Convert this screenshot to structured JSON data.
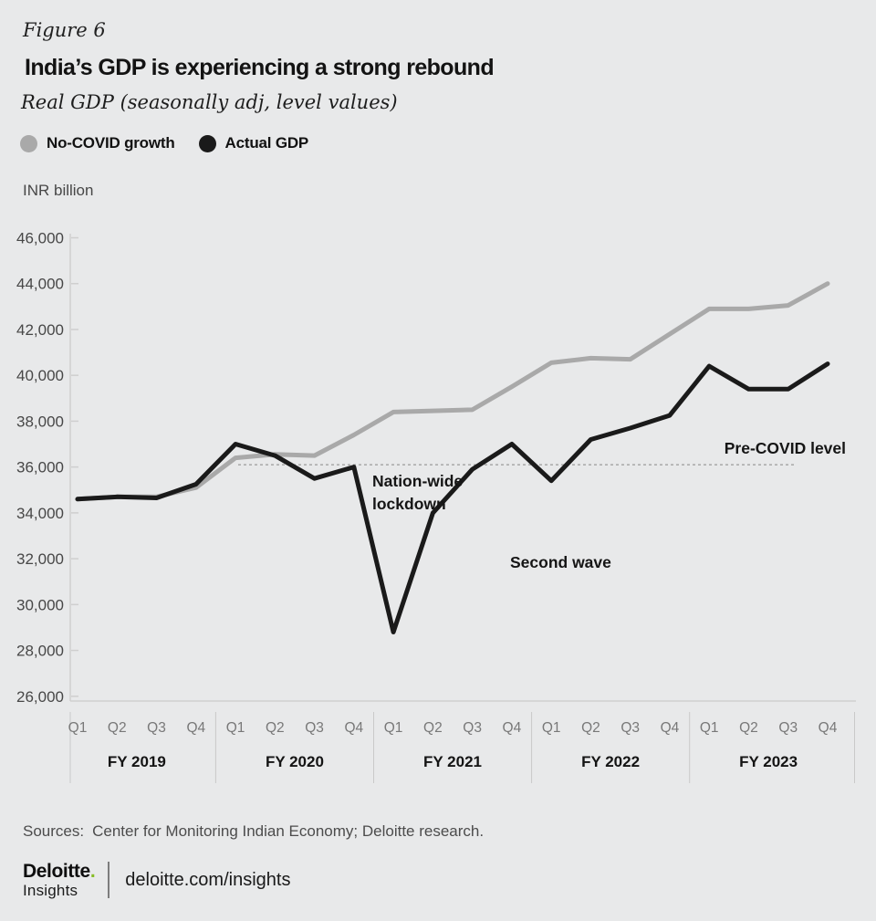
{
  "header": {
    "figure_label": "Figure 6",
    "title": "India’s GDP is experiencing a strong rebound",
    "subtitle": "Real GDP (seasonally adj, level values)"
  },
  "legend": [
    {
      "label": "No-COVID growth",
      "color": "#a9a9a9"
    },
    {
      "label": "Actual GDP",
      "color": "#1a1a1a"
    }
  ],
  "chart_data": {
    "type": "line",
    "unit_label": "INR billion",
    "x_axis": {
      "quarters": [
        "Q1",
        "Q2",
        "Q3",
        "Q4",
        "Q1",
        "Q2",
        "Q3",
        "Q4",
        "Q1",
        "Q2",
        "Q3",
        "Q4",
        "Q1",
        "Q2",
        "Q3",
        "Q4",
        "Q1",
        "Q2",
        "Q3",
        "Q4"
      ],
      "fiscal_years": [
        "FY 2019",
        "FY 2020",
        "FY 2021",
        "FY 2022",
        "FY 2023"
      ]
    },
    "y_axis": {
      "min": 26000,
      "max": 46000,
      "tick_step": 2000,
      "grid": false
    },
    "series": [
      {
        "name": "No-COVID growth",
        "color": "#a9a9a9",
        "values": [
          34600,
          34700,
          34700,
          35100,
          36400,
          36550,
          36500,
          37400,
          38400,
          38450,
          38500,
          39500,
          40550,
          40750,
          40700,
          41800,
          42900,
          42900,
          43050,
          44000
        ]
      },
      {
        "name": "Actual GDP",
        "color": "#1a1a1a",
        "values": [
          34600,
          34700,
          34650,
          35250,
          37000,
          36500,
          35500,
          36000,
          28800,
          34000,
          35900,
          37000,
          35400,
          37200,
          37700,
          38250,
          40400,
          39400,
          39400,
          40500
        ]
      }
    ],
    "reference_line": {
      "value": 36100,
      "style": "dashed"
    },
    "annotations": [
      {
        "id": "lockdown",
        "lines": [
          "Nation-wide",
          "lockdown"
        ]
      },
      {
        "id": "second_wave",
        "lines": [
          "Second wave"
        ]
      },
      {
        "id": "pre_covid",
        "lines": [
          "Pre-COVID level"
        ]
      }
    ]
  },
  "footer": {
    "sources_label": "Sources:",
    "sources_text": "Center for Monitoring Indian Economy; Deloitte research.",
    "brand": {
      "name": "Deloitte",
      "dot": ".",
      "sub": "Insights",
      "url": "deloitte.com/insights"
    }
  },
  "colors": {
    "background": "#e8e9ea",
    "axis": "#cfcfcf",
    "accent_green": "#86bc25"
  }
}
